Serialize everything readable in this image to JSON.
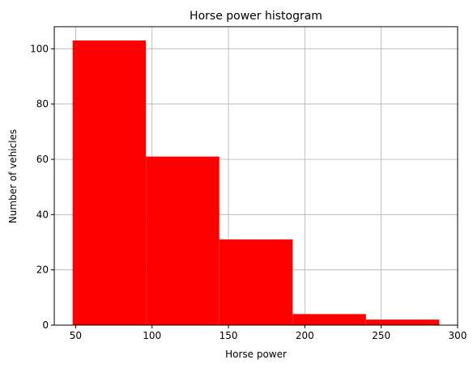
{
  "chart_data": {
    "type": "bar",
    "subtype": "histogram",
    "title": "Horse power histogram",
    "xlabel": "Horse power",
    "ylabel": "Number of vehicles",
    "bins": [
      {
        "start": 48,
        "end": 96,
        "count": 103
      },
      {
        "start": 96,
        "end": 144,
        "count": 61
      },
      {
        "start": 144,
        "end": 192,
        "count": 31
      },
      {
        "start": 192,
        "end": 240,
        "count": 4
      },
      {
        "start": 240,
        "end": 288,
        "count": 2
      }
    ],
    "xlim": [
      36,
      300
    ],
    "ylim": [
      0,
      108
    ],
    "xticks": [
      50,
      100,
      150,
      200,
      250,
      300
    ],
    "yticks": [
      0,
      20,
      40,
      60,
      80,
      100
    ],
    "grid": true,
    "colors": {
      "bar": "#ff0000",
      "grid": "#b0b0b0",
      "axis": "#000000"
    }
  }
}
